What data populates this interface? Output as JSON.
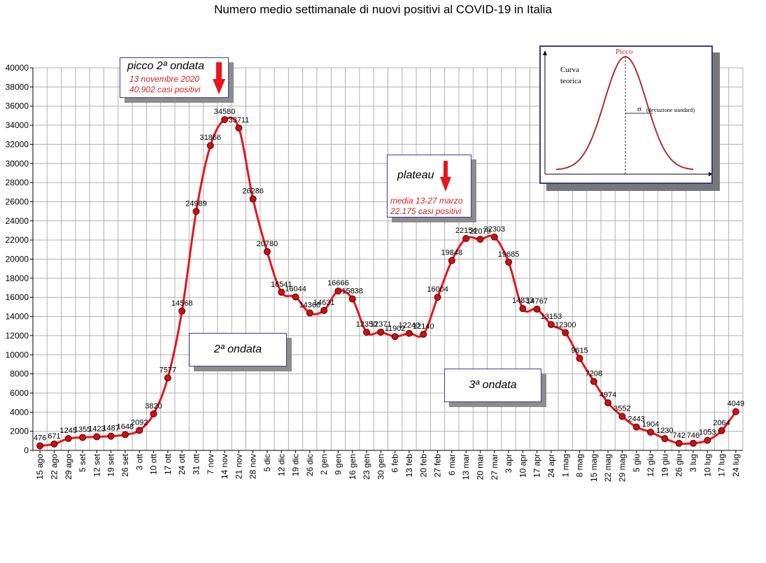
{
  "chart_data": {
    "type": "line",
    "title": "Numero medio settimanale di nuovi positivi al COVID-19 in Italia",
    "xlabel": "",
    "ylabel": "",
    "ylim": [
      0,
      40000
    ],
    "yticks": [
      0,
      2000,
      4000,
      6000,
      8000,
      10000,
      12000,
      14000,
      16000,
      18000,
      20000,
      22000,
      24000,
      26000,
      28000,
      30000,
      32000,
      34000,
      36000,
      38000,
      40000
    ],
    "grid": true,
    "line_color": "#e8151c",
    "marker_color": "#cc1010",
    "categories": [
      "15 ago",
      "22 ago",
      "29 ago",
      "5 set",
      "12 set",
      "19 set",
      "26 set",
      "3 ott",
      "10 ott",
      "17 ott",
      "24 ott",
      "31 ott",
      "7 nov",
      "14 nov",
      "21 nov",
      "28 nov",
      "5 dic",
      "12 dic",
      "19 dic",
      "26 dic",
      "2 gen",
      "9 gen",
      "16 gen",
      "23 gen",
      "30 gen",
      "6 feb",
      "13 feb",
      "20 feb",
      "27 feb",
      "6 mar",
      "13 mar",
      "20 mar",
      "27 mar",
      "3 apr",
      "10 apr",
      "17 apr",
      "24 apr",
      "1 mag",
      "8 mag",
      "15 mag",
      "22 mag",
      "29 mag",
      "5 giu",
      "12 giu",
      "19 giu",
      "26 giu",
      "3 lug",
      "10 lug",
      "17 lug",
      "24 lug"
    ],
    "series": [
      {
        "values": [
          476,
          671,
          1245,
          1355,
          1423,
          1487,
          1648,
          2092,
          3820,
          7577,
          14568,
          24989,
          31866,
          34580,
          33711,
          26286,
          20780,
          16541,
          16044,
          14366,
          14631,
          16666,
          15838,
          12350,
          12371,
          11902,
          12240,
          12140,
          16004,
          19848,
          22154,
          22079,
          22303,
          19685,
          14833,
          14767,
          13153,
          12300,
          9615,
          7208,
          4974,
          3552,
          2443,
          1904,
          1230,
          742,
          746,
          1053,
          2064,
          4049
        ]
      }
    ],
    "annotations": {
      "peak": {
        "heading": "picco 2ª ondata",
        "line1": "13 novembre 2020",
        "line2": "40.902 casi positivi"
      },
      "plateau": {
        "heading": "plateau",
        "line1": "media 13-27 marzo",
        "line2": "22.175 casi positivi"
      },
      "wave2": "2ª ondata",
      "wave3": "3ª ondata"
    },
    "inset": {
      "peak_label": "Picco",
      "curve_label_1": "Curva",
      "curve_label_2": "teorica",
      "sigma_symbol": "σ",
      "sigma_text": "(deviazione standard)"
    }
  }
}
